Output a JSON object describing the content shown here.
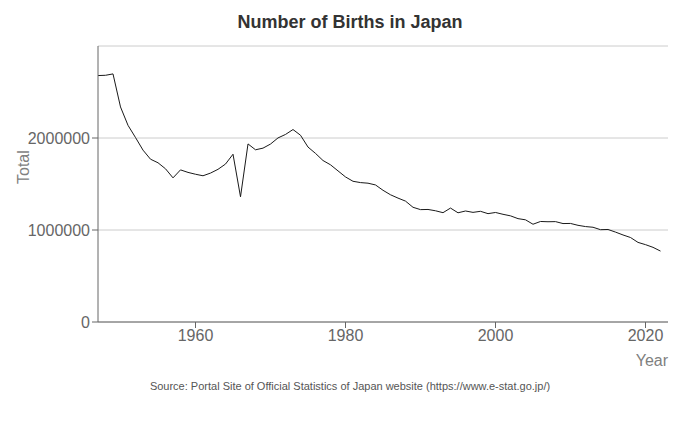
{
  "chart_data": {
    "type": "line",
    "title": "Number of Births in Japan",
    "xlabel": "Year",
    "ylabel": "Total",
    "annotations": [
      "Source: Portal Site of Official Statistics of Japan website (https://www.e-stat.go.jp/)"
    ],
    "x": [
      1947,
      1948,
      1949,
      1950,
      1951,
      1952,
      1953,
      1954,
      1955,
      1956,
      1957,
      1958,
      1959,
      1960,
      1961,
      1962,
      1963,
      1964,
      1965,
      1966,
      1967,
      1968,
      1969,
      1970,
      1971,
      1972,
      1973,
      1974,
      1975,
      1976,
      1977,
      1978,
      1979,
      1980,
      1981,
      1982,
      1983,
      1984,
      1985,
      1986,
      1987,
      1988,
      1989,
      1990,
      1991,
      1992,
      1993,
      1994,
      1995,
      1996,
      1997,
      1998,
      1999,
      2000,
      2001,
      2002,
      2003,
      2004,
      2005,
      2006,
      2007,
      2008,
      2009,
      2010,
      2011,
      2012,
      2013,
      2014,
      2015,
      2016,
      2017,
      2018,
      2019,
      2020,
      2021,
      2022
    ],
    "values": [
      2678792,
      2681624,
      2696638,
      2337507,
      2137689,
      2005162,
      1868040,
      1769580,
      1730692,
      1665278,
      1566713,
      1653469,
      1626080,
      1606041,
      1589372,
      1618616,
      1659521,
      1716761,
      1823697,
      1360974,
      1935647,
      1871839,
      1889815,
      1934239,
      2000973,
      2038682,
      2091983,
      2029989,
      1901440,
      1832617,
      1755100,
      1708643,
      1642580,
      1576889,
      1529455,
      1515392,
      1508687,
      1489780,
      1431577,
      1382946,
      1346658,
      1314006,
      1246802,
      1221585,
      1223245,
      1208989,
      1188282,
      1238328,
      1187064,
      1206555,
      1191665,
      1203147,
      1177669,
      1190547,
      1170662,
      1153855,
      1123610,
      1110721,
      1062530,
      1092674,
      1089818,
      1091156,
      1070036,
      1071304,
      1050807,
      1037232,
      1029816,
      1003539,
      1005677,
      977242,
      946060,
      918397,
      865234,
      840835,
      811622,
      770759
    ],
    "color": "#1a1a1a",
    "xlim": [
      1947,
      2023
    ],
    "xticks": [
      1960,
      1980,
      2000,
      2020
    ],
    "ylim": [
      0,
      3000000
    ],
    "yticks": [
      0,
      1000000,
      2000000
    ],
    "grid": true
  }
}
